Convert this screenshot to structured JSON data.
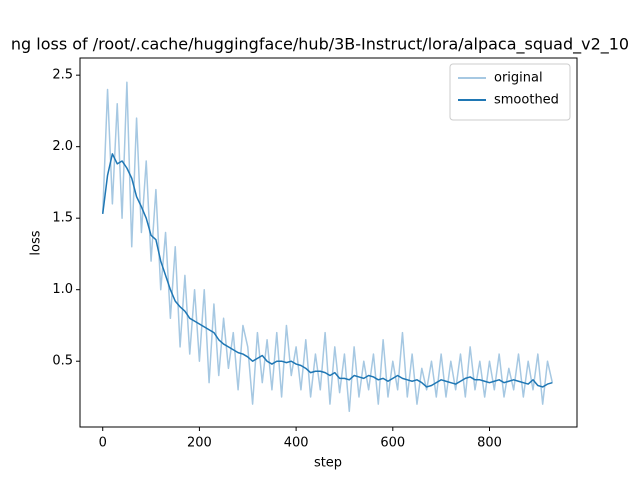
{
  "chart_data": {
    "type": "line",
    "title": "ng loss of /root/.cache/huggingface/hub/3B-Instruct/lora/alpaca_squad_v2_10",
    "x_label": "step",
    "y_label": "loss",
    "x": [
      0,
      10,
      20,
      30,
      40,
      50,
      60,
      70,
      80,
      90,
      100,
      110,
      120,
      130,
      140,
      150,
      160,
      170,
      180,
      190,
      200,
      210,
      220,
      230,
      240,
      250,
      260,
      270,
      280,
      290,
      300,
      310,
      320,
      330,
      340,
      350,
      360,
      370,
      380,
      390,
      400,
      410,
      420,
      430,
      440,
      450,
      460,
      470,
      480,
      490,
      500,
      510,
      520,
      530,
      540,
      550,
      560,
      570,
      580,
      590,
      600,
      610,
      620,
      630,
      640,
      650,
      660,
      670,
      680,
      690,
      700,
      710,
      720,
      730,
      740,
      750,
      760,
      770,
      780,
      790,
      800,
      810,
      820,
      830,
      840,
      850,
      860,
      870,
      880,
      890,
      900,
      910,
      920,
      930
    ],
    "series": [
      {
        "name": "original",
        "color": "#a6c8e2",
        "values": [
          1.53,
          2.4,
          1.6,
          2.3,
          1.5,
          2.45,
          1.3,
          2.2,
          1.4,
          1.9,
          1.2,
          1.7,
          1.0,
          1.4,
          0.8,
          1.3,
          0.6,
          1.1,
          0.55,
          1.0,
          0.5,
          1.0,
          0.35,
          0.9,
          0.4,
          0.8,
          0.45,
          0.7,
          0.3,
          0.75,
          0.6,
          0.2,
          0.7,
          0.35,
          0.65,
          0.3,
          0.7,
          0.25,
          0.75,
          0.4,
          0.6,
          0.3,
          0.65,
          0.25,
          0.55,
          0.3,
          0.7,
          0.2,
          0.6,
          0.28,
          0.55,
          0.15,
          0.6,
          0.25,
          0.5,
          0.3,
          0.55,
          0.2,
          0.65,
          0.25,
          0.5,
          0.3,
          0.7,
          0.25,
          0.55,
          0.2,
          0.45,
          0.3,
          0.5,
          0.25,
          0.55,
          0.25,
          0.5,
          0.3,
          0.55,
          0.25,
          0.6,
          0.3,
          0.5,
          0.25,
          0.5,
          0.3,
          0.55,
          0.25,
          0.45,
          0.3,
          0.55,
          0.25,
          0.5,
          0.3,
          0.55,
          0.2,
          0.5,
          0.35
        ]
      },
      {
        "name": "smoothed",
        "color": "#1f77b4",
        "values": [
          1.53,
          1.8,
          1.95,
          1.88,
          1.9,
          1.85,
          1.78,
          1.65,
          1.58,
          1.5,
          1.38,
          1.35,
          1.2,
          1.1,
          1.0,
          0.92,
          0.88,
          0.85,
          0.8,
          0.78,
          0.76,
          0.74,
          0.72,
          0.7,
          0.65,
          0.62,
          0.6,
          0.58,
          0.56,
          0.55,
          0.53,
          0.5,
          0.52,
          0.54,
          0.5,
          0.48,
          0.5,
          0.5,
          0.49,
          0.5,
          0.48,
          0.47,
          0.45,
          0.42,
          0.43,
          0.43,
          0.42,
          0.4,
          0.42,
          0.38,
          0.38,
          0.37,
          0.4,
          0.39,
          0.38,
          0.4,
          0.39,
          0.37,
          0.38,
          0.36,
          0.38,
          0.4,
          0.38,
          0.37,
          0.36,
          0.37,
          0.35,
          0.32,
          0.33,
          0.35,
          0.37,
          0.36,
          0.35,
          0.34,
          0.36,
          0.38,
          0.39,
          0.37,
          0.37,
          0.36,
          0.35,
          0.36,
          0.37,
          0.35,
          0.36,
          0.37,
          0.36,
          0.35,
          0.34,
          0.37,
          0.33,
          0.32,
          0.34,
          0.35
        ]
      }
    ],
    "xlim": [
      -47,
      981
    ],
    "ylim": [
      0.04,
      2.62
    ],
    "xticks": [
      0,
      200,
      400,
      600,
      800
    ],
    "yticks": [
      0.5,
      {
        "value": 1,
        "label": "1.0"
      },
      1.5,
      {
        "value": 2,
        "label": "2.0"
      },
      2.5
    ],
    "legend": "upper right",
    "grid": false
  }
}
